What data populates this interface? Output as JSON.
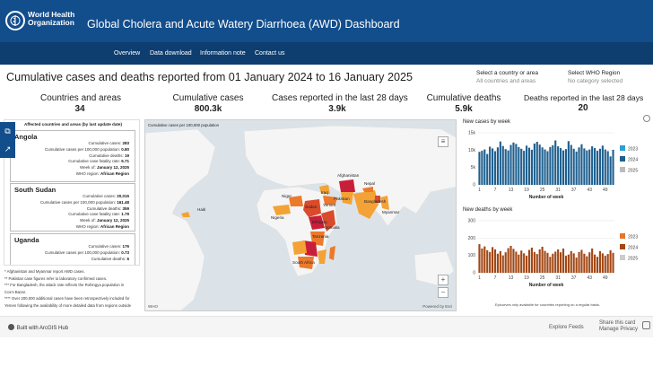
{
  "header": {
    "org_line1": "World Health",
    "org_line2": "Organization",
    "title": "Global Cholera and Acute Watery Diarrhoea (AWD) Dashboard"
  },
  "nav": [
    "Overview",
    "Data download",
    "Information note",
    "Contact us"
  ],
  "page_heading": "Cumulative cases and deaths reported from 01 January 2024 to 16 January 2025",
  "filters": {
    "country_label": "Select a country or area",
    "country_value": "All countries and areas",
    "region_label": "Select WHO Region",
    "region_value": "No category selected"
  },
  "stats": [
    {
      "label": "Countries and areas",
      "value": "34"
    },
    {
      "label": "Cumulative cases",
      "value": "800.3k"
    },
    {
      "label": "Cases reported in the last 28 days",
      "value": "3.9k"
    },
    {
      "label": "Cumulative deaths",
      "value": "5.9k"
    },
    {
      "label": "Deaths reported in the last 28 days",
      "value": "20"
    }
  ],
  "list": {
    "title": "Affected countries and areas (by last update date)",
    "cards": [
      {
        "name": "Angola",
        "rows": [
          {
            "label": "Cumulative cases:",
            "value": "283"
          },
          {
            "label": "Cumulative cases per 100,000 population:",
            "value": "0.80"
          },
          {
            "label": "Cumulative deaths:",
            "value": "19"
          },
          {
            "label": "Cumulative case fatality rate:",
            "value": "6.71"
          },
          {
            "label": "Week of:",
            "value": "January 12, 2025"
          },
          {
            "label": "WHO region:",
            "value": "African Region"
          }
        ]
      },
      {
        "name": "South Sudan",
        "rows": [
          {
            "label": "Cumulative cases:",
            "value": "20,015"
          },
          {
            "label": "Cumulative cases per 100,000 population:",
            "value": "161.48"
          },
          {
            "label": "Cumulative deaths:",
            "value": "359"
          },
          {
            "label": "Cumulative case fatality rate:",
            "value": "1.79"
          },
          {
            "label": "Week of:",
            "value": "January 12, 2025"
          },
          {
            "label": "WHO region:",
            "value": "African Region"
          }
        ]
      },
      {
        "name": "Uganda",
        "rows": [
          {
            "label": "Cumulative cases:",
            "value": "176"
          },
          {
            "label": "Cumulative cases per 100,000 population:",
            "value": "0.73"
          },
          {
            "label": "Cumulative deaths:",
            "value": "6"
          }
        ]
      }
    ]
  },
  "notes": [
    "* Afghanistan and Myanmar report AWD cases.",
    "** Pakistan case figures refer to laboratory confirmed cases.",
    "*** For Bangladesh, the attack rate reflects the Rohingya population in",
    "Cox's Bazar.",
    "**** Over 200,000 additional cases have been retrospectively included for",
    "Yemen following the availability of more detailed data from regions outside"
  ],
  "map": {
    "title": "Cumulative cases per 100,000 population",
    "attribution_left": "WHO",
    "attribution_right": "Powered by Esri",
    "zoom_in": "+",
    "zoom_out": "−",
    "labels": {
      "haiti": "Haiti",
      "iraq": "Iraq",
      "afghanistan": "Afghanistan",
      "pakistan": "Pakistan",
      "nepal": "Nepal",
      "bangladesh": "Bangladesh",
      "myanmar": "Myanmar",
      "niger": "Niger",
      "nigeria": "Nigeria",
      "sudan": "Sudan",
      "yemen": "Yemen",
      "ethiopia": "Ethiopia",
      "somalia": "Somalia",
      "tanzania": "Tanzania",
      "south_africa": "South Africa"
    },
    "colors": {
      "ocean": "#dce3e8",
      "land": "#f5f5f5",
      "low": "#f4a236",
      "mid": "#ec7a2a",
      "high": "#d94b2b",
      "highest": "#c81e3a"
    }
  },
  "charts": [
    {
      "title": "New cases by week",
      "chart_data": {
        "type": "bar",
        "title": "New cases by week",
        "xlabel": "Number of week",
        "ylabel": "",
        "ylim": [
          0,
          15000
        ],
        "y_ticks": [
          "15k",
          "10k",
          "5k",
          "0"
        ],
        "x_ticks": [
          1,
          7,
          13,
          19,
          25,
          31,
          37,
          43,
          49
        ],
        "legend": [
          "2023",
          "2024",
          "2025"
        ],
        "legend_colors": [
          "#2a9fd8",
          "#1e5f8f",
          "#bbbbbb"
        ],
        "series": [
          {
            "name": "2024",
            "values": [
              9500,
              9800,
              10200,
              8900,
              11000,
              10500,
              9700,
              10800,
              12500,
              11200,
              10300,
              9900,
              11500,
              12200,
              11800,
              10900,
              10400,
              9800,
              11300,
              10700,
              10100,
              11900,
              12400,
              11600,
              10800,
              10200,
              9700,
              10900,
              11400,
              12800,
              11100,
              10600,
              9900,
              10300,
              12600,
              11500,
              10400,
              9600,
              10800,
              11700,
              10500,
              9900,
              10200,
              11100,
              10600,
              9800,
              10400,
              11300,
              10200,
              9700,
              8200,
              10100
            ]
          }
        ]
      }
    },
    {
      "title": "New deaths by week",
      "chart_data": {
        "type": "bar",
        "title": "New deaths by week",
        "xlabel": "Number of week",
        "ylabel": "",
        "ylim": [
          0,
          300
        ],
        "y_ticks": [
          "300",
          "200",
          "100",
          "0"
        ],
        "x_ticks": [
          1,
          7,
          13,
          19,
          25,
          31,
          37,
          43,
          49
        ],
        "legend": [
          "2023",
          "2024",
          "2025"
        ],
        "legend_colors": [
          "#e8742a",
          "#a24714",
          "#cccccc"
        ],
        "series": [
          {
            "name": "2024",
            "values": [
              165,
              140,
              152,
              130,
              120,
              148,
              135,
              110,
              125,
              100,
              118,
              142,
              155,
              138,
              122,
              105,
              128,
              112,
              98,
              132,
              145,
              120,
              108,
              135,
              150,
              126,
              115,
              92,
              110,
              122,
              135,
              118,
              140,
              98,
              105,
              125,
              112,
              88,
              120,
              132,
              110,
              95,
              118,
              140,
              105,
              92,
              125,
              112,
              98,
              108,
              130,
              115
            ]
          }
        ]
      }
    }
  ],
  "chart_footnote": "Epicurves only available for countries reporting on a regular basis.",
  "footer": {
    "built": "Built with ArcGIS Hub",
    "explore": "Explore Feeds",
    "share": "Share this card",
    "privacy": "Manage Privacy"
  }
}
